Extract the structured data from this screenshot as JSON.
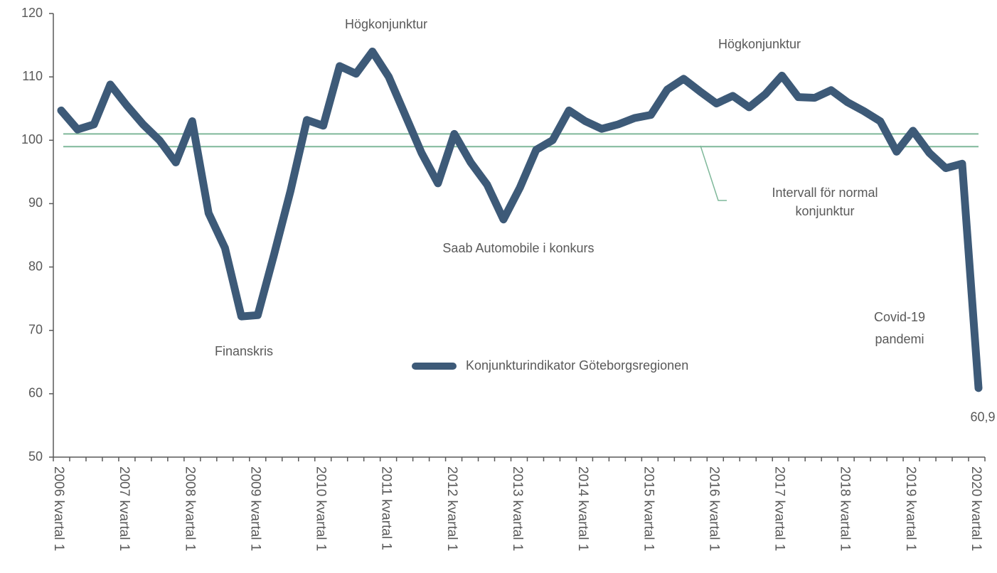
{
  "chart_data": {
    "type": "line",
    "categories": [
      "2006 kvartal 1",
      null,
      null,
      null,
      "2007 kvartal 1",
      null,
      null,
      null,
      "2008 kvartal 1",
      null,
      null,
      null,
      "2009 kvartal 1",
      null,
      null,
      null,
      "2010 kvartal 1",
      null,
      null,
      null,
      "2011 kvartal 1",
      null,
      null,
      null,
      "2012 kvartal 1",
      null,
      null,
      null,
      "2013 kvartal 1",
      null,
      null,
      null,
      "2014 kvartal 1",
      null,
      null,
      null,
      "2015 kvartal 1",
      null,
      null,
      null,
      "2016 kvartal 1",
      null,
      null,
      null,
      "2017 kvartal 1",
      null,
      null,
      null,
      "2018 kvartal 1",
      null,
      null,
      null,
      "2019 kvartal 1",
      null,
      null,
      null,
      "2020 kvartal 1"
    ],
    "series": [
      {
        "name": "Konjunkturindikator Göteborgsregionen",
        "color": "#3d5a78",
        "values": [
          104.7,
          101.7,
          102.5,
          108.8,
          105.5,
          102.5,
          100,
          96.5,
          103,
          88.5,
          83,
          72.2,
          72.4,
          82,
          92,
          103.2,
          102.3,
          111.7,
          110.5,
          114,
          110,
          104,
          98,
          93.2,
          101,
          96.5,
          93,
          87.5,
          92.5,
          98.5,
          100,
          104.7,
          103,
          101.8,
          102.5,
          103.5,
          104,
          108,
          109.7,
          107.7,
          105.8,
          107,
          105.2,
          107.3,
          110.2,
          106.8,
          106.7,
          107.9,
          106,
          104.6,
          103,
          98.2,
          101.5,
          98,
          95.6,
          96.3,
          60.9
        ],
        "value_labels": [
          null,
          null,
          null,
          null,
          null,
          null,
          null,
          null,
          null,
          null,
          null,
          null,
          null,
          null,
          null,
          null,
          null,
          null,
          null,
          null,
          null,
          null,
          null,
          null,
          null,
          null,
          null,
          null,
          null,
          null,
          null,
          null,
          null,
          null,
          null,
          null,
          null,
          null,
          null,
          null,
          null,
          null,
          null,
          null,
          null,
          null,
          null,
          null,
          null,
          null,
          null,
          null,
          null,
          null,
          null,
          null,
          "60,9"
        ]
      }
    ],
    "reference_lines": {
      "values": [
        101,
        99
      ],
      "color": "#7fb89a"
    },
    "annotations": [
      "Högkonjunktur",
      "Högkonjunktur",
      "Finanskris",
      "Saab Automobile i konkurs",
      "Intervall för normal",
      "konjunktur",
      "Covid-19",
      "pandemi"
    ],
    "ylim": [
      50,
      120
    ],
    "yticks": [
      50,
      60,
      70,
      80,
      90,
      100,
      110,
      120
    ]
  }
}
